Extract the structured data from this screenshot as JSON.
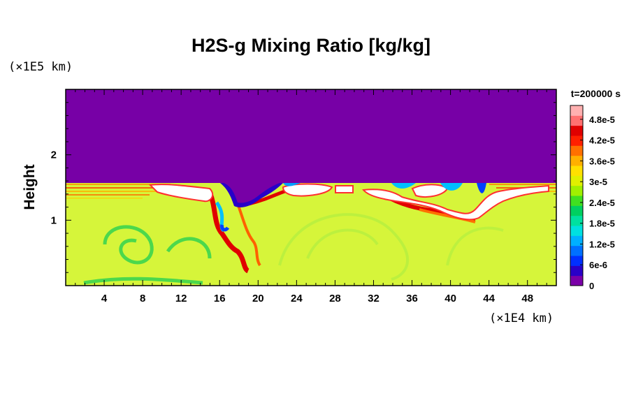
{
  "chart_data": {
    "type": "heatmap",
    "title": "H2S-g Mixing Ratio [kg/kg]",
    "ylabel": "Height",
    "xlabel": "",
    "x_unit": "(×1E4 km)",
    "y_unit": "(×1E5 km)",
    "time_label": "t=200000 s",
    "xlim": [
      0,
      51
    ],
    "ylim": [
      0,
      3
    ],
    "x_ticks": [
      4,
      8,
      12,
      16,
      20,
      24,
      28,
      32,
      36,
      40,
      44,
      48
    ],
    "x_tick_labels": [
      "4",
      "8",
      "12",
      "16",
      "20",
      "24",
      "28",
      "32",
      "36",
      "40",
      "44",
      "48"
    ],
    "y_ticks": [
      1,
      2
    ],
    "y_tick_labels": [
      "1",
      "2"
    ],
    "colorbar": {
      "min": 0,
      "max": 5.2e-05,
      "ticks": [
        0,
        6e-06,
        1.2e-05,
        1.8e-05,
        2.4e-05,
        3e-05,
        3.6e-05,
        4.2e-05,
        4.8e-05
      ],
      "tick_labels": [
        "0",
        "6e-6",
        "1.2e-5",
        "1.8e-5",
        "2.4e-5",
        "3e-5",
        "3.6e-5",
        "4.2e-5",
        "4.8e-5"
      ],
      "colors": [
        "#7b00a8",
        "#2a00c8",
        "#0030ff",
        "#0070ff",
        "#00b0ff",
        "#00e0e0",
        "#00e0a0",
        "#00d060",
        "#40e020",
        "#a0f000",
        "#e0f000",
        "#ffe000",
        "#ffb000",
        "#ff7000",
        "#ff2000",
        "#e00000",
        "#ff7070",
        "#ffb0b0"
      ]
    },
    "description_levels": {
      "upper_region_value": 0,
      "lower_region_value": 3.4e-05,
      "interface_height": 1.58
    }
  }
}
